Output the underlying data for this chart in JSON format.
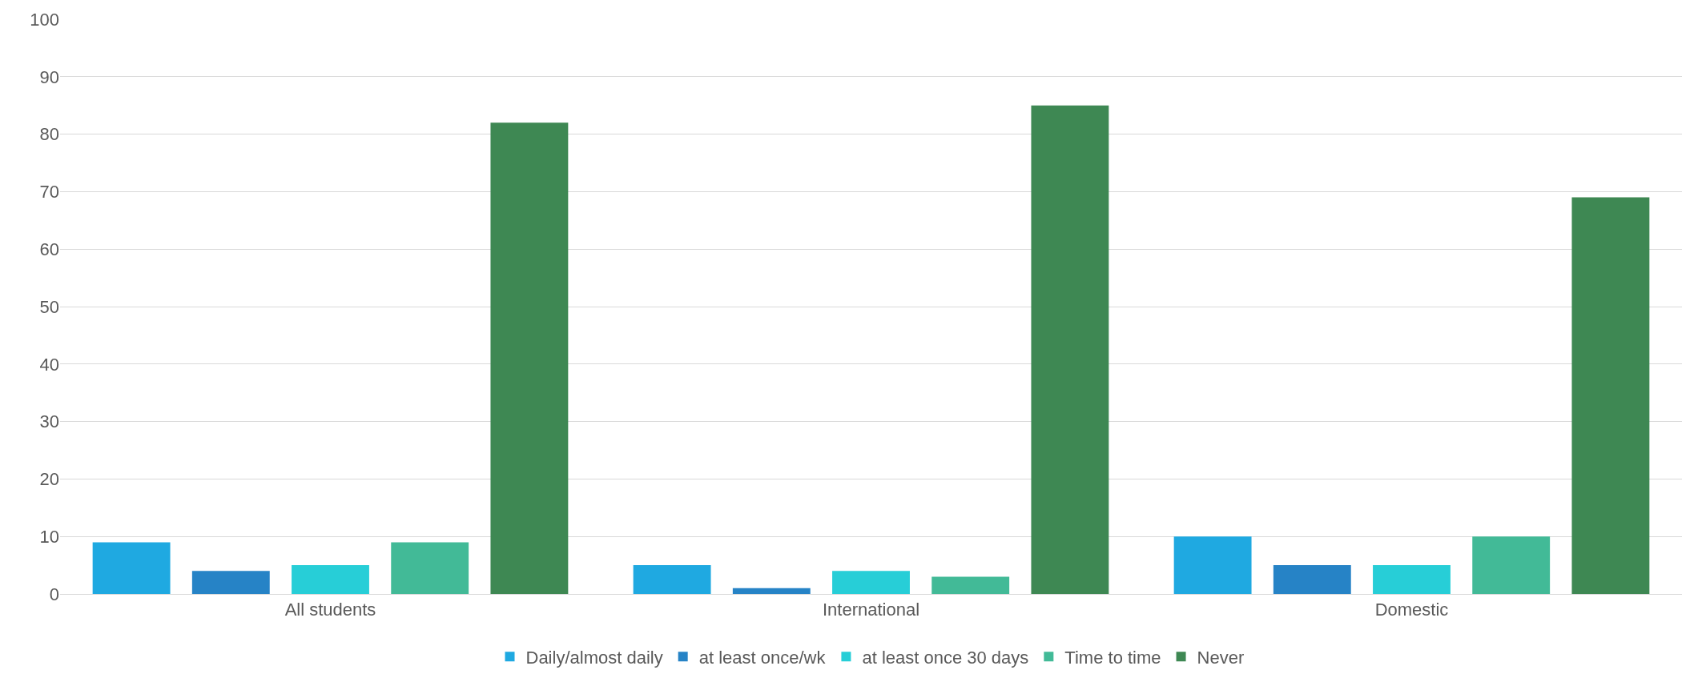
{
  "chart_data": {
    "type": "bar",
    "categories": [
      "All students",
      "International",
      "Domestic"
    ],
    "series": [
      {
        "name": "Daily/almost daily",
        "color": "#1fa9e1",
        "values": [
          9,
          5,
          10
        ]
      },
      {
        "name": "at least once/wk",
        "color": "#2683c6",
        "values": [
          4,
          1,
          5
        ]
      },
      {
        "name": "at least once 30 days",
        "color": "#27ced7",
        "values": [
          5,
          4,
          5
        ]
      },
      {
        "name": "Time to time",
        "color": "#42ba97",
        "values": [
          9,
          3,
          10
        ]
      },
      {
        "name": "Never",
        "color": "#3e8853",
        "values": [
          82,
          85,
          69
        ]
      }
    ],
    "ylim": [
      0,
      100
    ],
    "yticks": [
      0,
      10,
      20,
      30,
      40,
      50,
      60,
      70,
      80,
      90,
      100
    ],
    "grid": "y",
    "legend": "bottom"
  }
}
